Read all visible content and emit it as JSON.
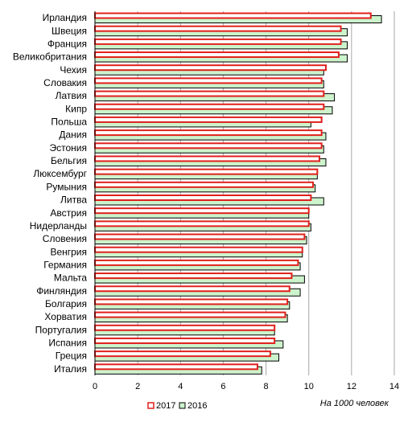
{
  "chart_data": {
    "type": "bar",
    "orientation": "horizontal",
    "categories": [
      "Ирландия",
      "Швеция",
      "Франция",
      "Великобритания",
      "Чехия",
      "Словакия",
      "Латвия",
      "Кипр",
      "Польша",
      "Дания",
      "Эстония",
      "Бельгия",
      "Люксембург",
      "Румыния",
      "Литва",
      "Австрия",
      "Нидерланды",
      "Словения",
      "Венгрия",
      "Германия",
      "Мальта",
      "Финляндия",
      "Болгария",
      "Хорватия",
      "Португалия",
      "Испания",
      "Греция",
      "Италия"
    ],
    "series": [
      {
        "name": "2017",
        "color": "#e0201b",
        "fill": "#ffffff",
        "values": [
          12.9,
          11.5,
          11.5,
          11.4,
          10.8,
          10.6,
          10.7,
          10.7,
          10.6,
          10.6,
          10.6,
          10.5,
          10.4,
          10.2,
          10.1,
          10.0,
          10.0,
          9.8,
          9.7,
          9.5,
          9.2,
          9.1,
          9.0,
          8.9,
          8.4,
          8.4,
          8.2,
          7.6
        ]
      },
      {
        "name": "2016",
        "color": "#000000",
        "fill": "#ccf3cc",
        "values": [
          13.4,
          11.8,
          11.8,
          11.8,
          10.7,
          10.7,
          11.2,
          11.1,
          10.1,
          10.8,
          10.7,
          10.8,
          10.4,
          10.3,
          10.7,
          10.0,
          10.1,
          9.9,
          9.7,
          9.6,
          9.8,
          9.6,
          9.1,
          9.0,
          8.4,
          8.8,
          8.6,
          7.8
        ]
      }
    ],
    "xlim": [
      0,
      14
    ],
    "xticks": [
      "0",
      "2",
      "4",
      "6",
      "8",
      "10",
      "12",
      "14"
    ],
    "xlabel": "На 1000 человек",
    "grid": "vertical",
    "legend": "bottom-left"
  }
}
